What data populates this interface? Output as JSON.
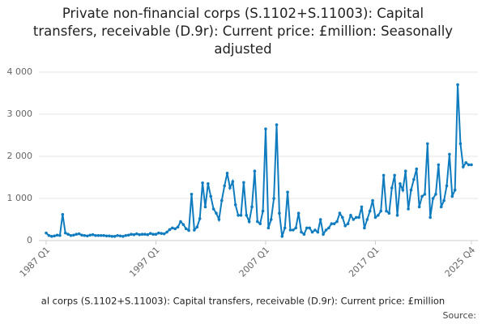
{
  "chart_data": {
    "type": "line",
    "title": "Private non-financial corps (S.1102+S.11003): Capital transfers, receivable (D.9r): Current price: £million: Seasonally adjusted",
    "footer": "al corps (S.1102+S.11003): Capital transfers, receivable (D.9r): Current price: £million",
    "source": "Source:",
    "color": "#0f7cbf",
    "categories": [
      "1987 Q1",
      null,
      null,
      null,
      null,
      null,
      null,
      null,
      null,
      null,
      null,
      null,
      null,
      null,
      null,
      null,
      null,
      null,
      null,
      null,
      null,
      null,
      null,
      null,
      null,
      null,
      null,
      null,
      null,
      null,
      null,
      null,
      null,
      null,
      null,
      null,
      null,
      null,
      null,
      null,
      "1997 Q1",
      null,
      null,
      null,
      null,
      null,
      null,
      null,
      null,
      null,
      null,
      null,
      null,
      null,
      null,
      null,
      null,
      null,
      null,
      null,
      null,
      null,
      null,
      null,
      null,
      null,
      null,
      null,
      null,
      null,
      null,
      null,
      null,
      null,
      null,
      null,
      null,
      null,
      null,
      null,
      "2007 Q1",
      null,
      null,
      null,
      null,
      null,
      null,
      null,
      null,
      null,
      null,
      null,
      null,
      null,
      null,
      null,
      null,
      null,
      null,
      null,
      null,
      null,
      null,
      null,
      null,
      null,
      null,
      null,
      null,
      null,
      null,
      null,
      null,
      null,
      null,
      null,
      null,
      null,
      null,
      null,
      "2017 Q1",
      null,
      null,
      null,
      null,
      null,
      null,
      null,
      null,
      null,
      null,
      null,
      null,
      null,
      null,
      null,
      null,
      null,
      null,
      null,
      null,
      null,
      null,
      null,
      null,
      null,
      null,
      null,
      null,
      null,
      null,
      null,
      null,
      null,
      null,
      "2025 Q4"
    ],
    "values": [
      180,
      120,
      100,
      110,
      130,
      120,
      620,
      180,
      150,
      120,
      130,
      150,
      160,
      130,
      120,
      110,
      130,
      140,
      120,
      120,
      120,
      120,
      110,
      110,
      100,
      100,
      120,
      110,
      100,
      120,
      130,
      150,
      140,
      160,
      140,
      150,
      150,
      140,
      170,
      150,
      150,
      180,
      170,
      160,
      200,
      260,
      300,
      280,
      320,
      450,
      380,
      280,
      240,
      1100,
      250,
      320,
      520,
      1370,
      800,
      1350,
      1050,
      750,
      650,
      500,
      950,
      1300,
      1600,
      1250,
      1400,
      850,
      600,
      600,
      1380,
      600,
      450,
      800,
      1650,
      450,
      400,
      700,
      2650,
      300,
      500,
      1000,
      2750,
      650,
      100,
      300,
      1150,
      250,
      250,
      300,
      650,
      200,
      150,
      300,
      300,
      200,
      250,
      200,
      500,
      150,
      250,
      300,
      400,
      400,
      450,
      650,
      550,
      350,
      400,
      600,
      500,
      550,
      550,
      800,
      300,
      500,
      700,
      950,
      550,
      600,
      700,
      1550,
      700,
      650,
      1250,
      1550,
      600,
      1350,
      1200,
      1650,
      750,
      1200,
      1450,
      1700,
      800,
      1050,
      1100,
      2300,
      550,
      1000,
      1100,
      1800,
      800,
      950,
      1300,
      2050,
      1050,
      1200,
      3700,
      2300,
      1750,
      1850,
      1800,
      1800
    ],
    "ylim": [
      0,
      4000
    ],
    "yticks": [
      0,
      {
        "value": 1000,
        "label": "1 000"
      },
      {
        "value": 2000,
        "label": "2 000"
      },
      {
        "value": 3000,
        "label": "3 000"
      },
      {
        "value": 4000,
        "label": "4 000"
      }
    ],
    "grid": true
  }
}
